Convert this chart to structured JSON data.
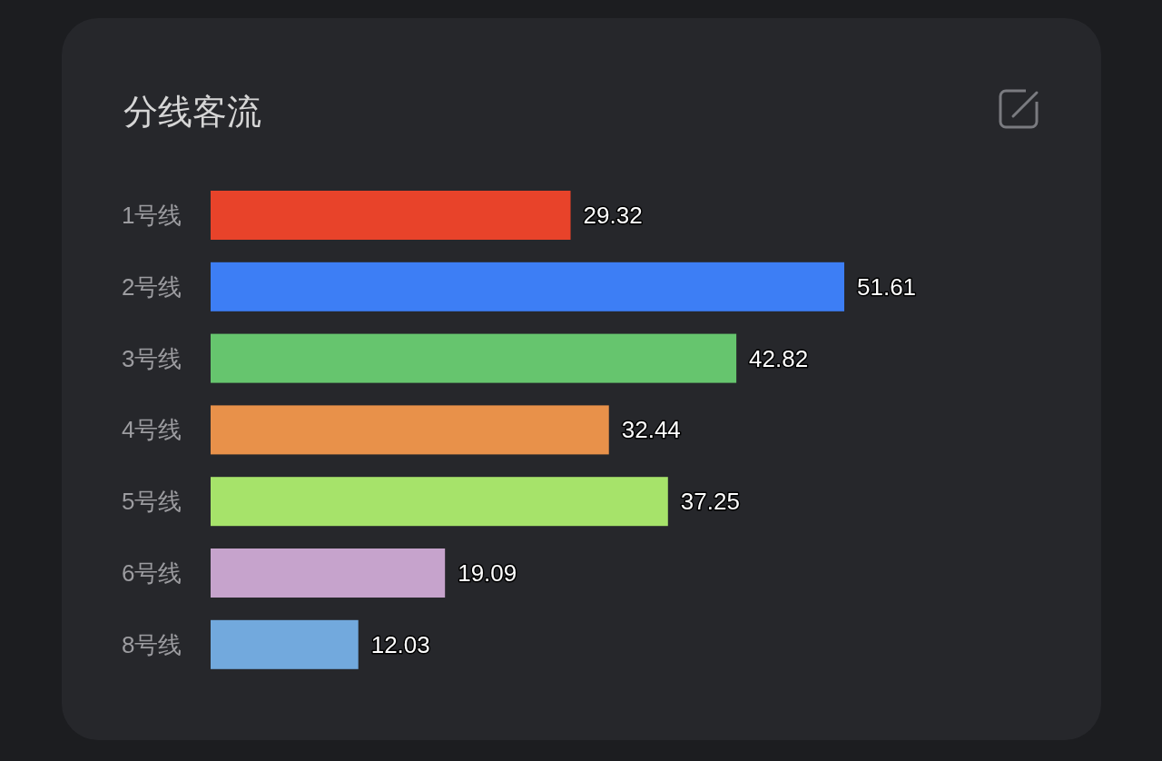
{
  "chart_data": {
    "type": "bar",
    "orientation": "horizontal",
    "title": "分线客流",
    "categories": [
      "1号线",
      "2号线",
      "3号线",
      "4号线",
      "5号线",
      "6号线",
      "8号线"
    ],
    "values": [
      29.32,
      51.61,
      42.82,
      32.44,
      37.25,
      19.09,
      12.03
    ],
    "colors": [
      "#e8432a",
      "#3d7ef5",
      "#66c56e",
      "#e8914a",
      "#a6e36a",
      "#c6a3cc",
      "#72a9dd"
    ],
    "data_labels": true
  }
}
